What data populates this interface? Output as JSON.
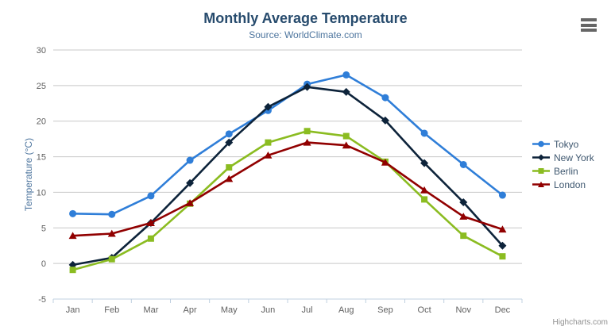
{
  "chart_data": {
    "type": "line",
    "title": "Monthly Average Temperature",
    "subtitle": "Source: WorldClimate.com",
    "categories": [
      "Jan",
      "Feb",
      "Mar",
      "Apr",
      "May",
      "Jun",
      "Jul",
      "Aug",
      "Sep",
      "Oct",
      "Nov",
      "Dec"
    ],
    "xlabel": "",
    "ylabel": "Temperature (°C)",
    "ylim": [
      -5,
      30
    ],
    "ytick_interval": 5,
    "grid": "horizontal",
    "legend_position": "right",
    "series": [
      {
        "name": "Tokyo",
        "color": "#2f7ed8",
        "marker": "circle",
        "values": [
          7.0,
          6.9,
          9.5,
          14.5,
          18.2,
          21.5,
          25.2,
          26.5,
          23.3,
          18.3,
          13.9,
          9.6
        ]
      },
      {
        "name": "New York",
        "color": "#0d233a",
        "marker": "diamond",
        "values": [
          -0.2,
          0.8,
          5.7,
          11.3,
          17.0,
          22.0,
          24.8,
          24.1,
          20.1,
          14.1,
          8.6,
          2.5
        ]
      },
      {
        "name": "Berlin",
        "color": "#8bbc21",
        "marker": "square",
        "values": [
          -0.9,
          0.6,
          3.5,
          8.4,
          13.5,
          17.0,
          18.6,
          17.9,
          14.3,
          9.0,
          3.9,
          1.0
        ]
      },
      {
        "name": "London",
        "color": "#910000",
        "marker": "triangle",
        "values": [
          3.9,
          4.2,
          5.7,
          8.5,
          11.9,
          15.2,
          17.0,
          16.6,
          14.2,
          10.3,
          6.6,
          4.8
        ]
      }
    ],
    "colors": {
      "title": "#274b6d",
      "subtitle": "#4d759e",
      "axis_title": "#4d759e",
      "grid_line": "#C8C8C8",
      "axis_line": "#C0D0E0",
      "tick_label": "#606060",
      "legend_text": "#3E576F"
    }
  },
  "export_menu": {
    "icon": "hamburger-icon"
  },
  "credits": {
    "label": "Highcharts.com"
  }
}
